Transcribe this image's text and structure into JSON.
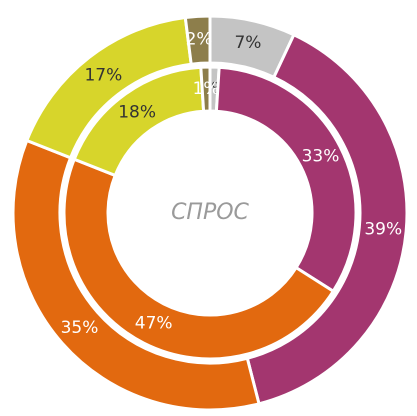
{
  "chart_data": {
    "type": "donut",
    "center_label": "СПРОС",
    "series": [
      {
        "values": [
          7,
          39,
          35,
          17,
          2
        ],
        "value_labels": [
          "7%",
          "39%",
          "35%",
          "17%",
          "2%"
        ],
        "colors": [
          "#c4c4c4",
          "#a3366f",
          "#e2690f",
          "#d7d52b",
          "#8d7e4b"
        ]
      },
      {
        "values": [
          1,
          33,
          47,
          18,
          1
        ],
        "value_labels": [
          "1%",
          "33%",
          "47%",
          "18%",
          "1%"
        ],
        "colors": [
          "#c4c4c4",
          "#a3366f",
          "#e2690f",
          "#d7d52b",
          "#8d7e4b"
        ]
      }
    ]
  }
}
